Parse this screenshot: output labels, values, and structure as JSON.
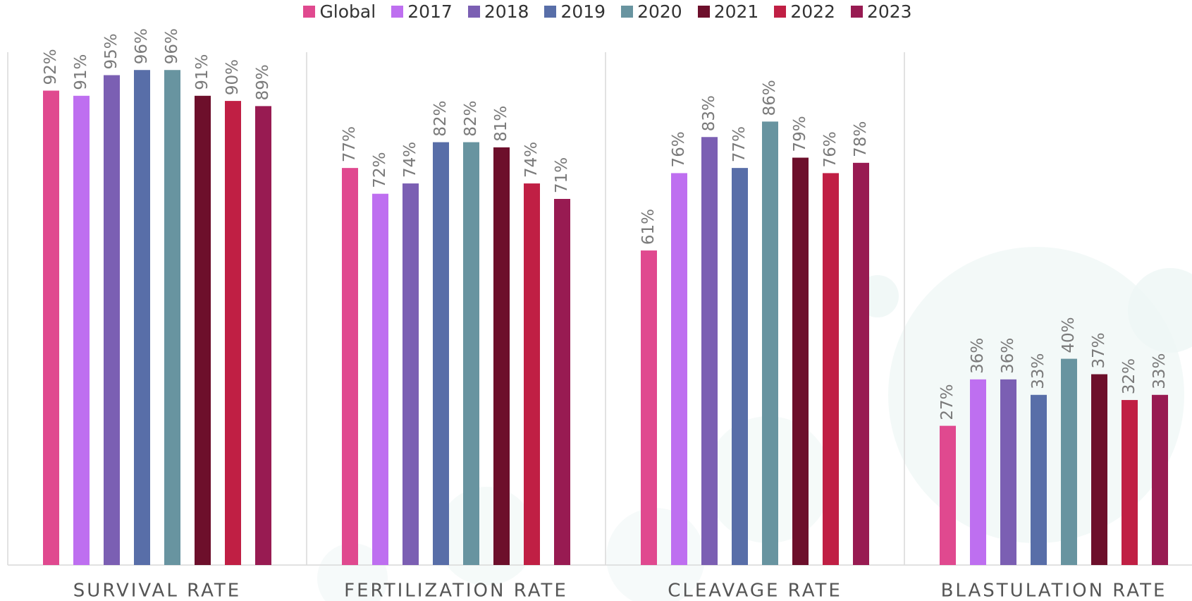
{
  "chart_data": {
    "type": "bar",
    "categories": [
      "SURVIVAL RATE",
      "FERTILIZATION RATE",
      "CLEAVAGE RATE",
      "BLASTULATION RATE"
    ],
    "series": [
      {
        "name": "Global",
        "color": "#e0498f",
        "values": [
          92,
          77,
          61,
          27
        ],
        "value_labels": [
          "92%",
          "77%",
          "61%",
          "27%"
        ]
      },
      {
        "name": "2017",
        "color": "#be6ff0",
        "values": [
          91,
          72,
          76,
          36
        ],
        "value_labels": [
          "91%",
          "72%",
          "76%",
          "36%"
        ]
      },
      {
        "name": "2018",
        "color": "#7b5fb3",
        "values": [
          95,
          74,
          83,
          36
        ],
        "value_labels": [
          "95%",
          "74%",
          "83%",
          "36%"
        ]
      },
      {
        "name": "2019",
        "color": "#586ea8",
        "values": [
          96,
          82,
          77,
          33
        ],
        "value_labels": [
          "96%",
          "82%",
          "77%",
          "33%"
        ]
      },
      {
        "name": "2020",
        "color": "#6894a0",
        "values": [
          96,
          82,
          86,
          40
        ],
        "value_labels": [
          "96%",
          "82%",
          "86%",
          "40%"
        ]
      },
      {
        "name": "2021",
        "color": "#6d0f2b",
        "values": [
          91,
          81,
          79,
          37
        ],
        "value_labels": [
          "91%",
          "81%",
          "79%",
          "37%"
        ]
      },
      {
        "name": "2022",
        "color": "#c01f44",
        "values": [
          90,
          74,
          76,
          32
        ],
        "value_labels": [
          "90%",
          "74%",
          "76%",
          "32%"
        ]
      },
      {
        "name": "2023",
        "color": "#981b52",
        "values": [
          89,
          71,
          78,
          33
        ],
        "value_labels": [
          "89%",
          "71%",
          "78%",
          "33%"
        ]
      }
    ],
    "ylim": [
      0,
      100
    ]
  }
}
